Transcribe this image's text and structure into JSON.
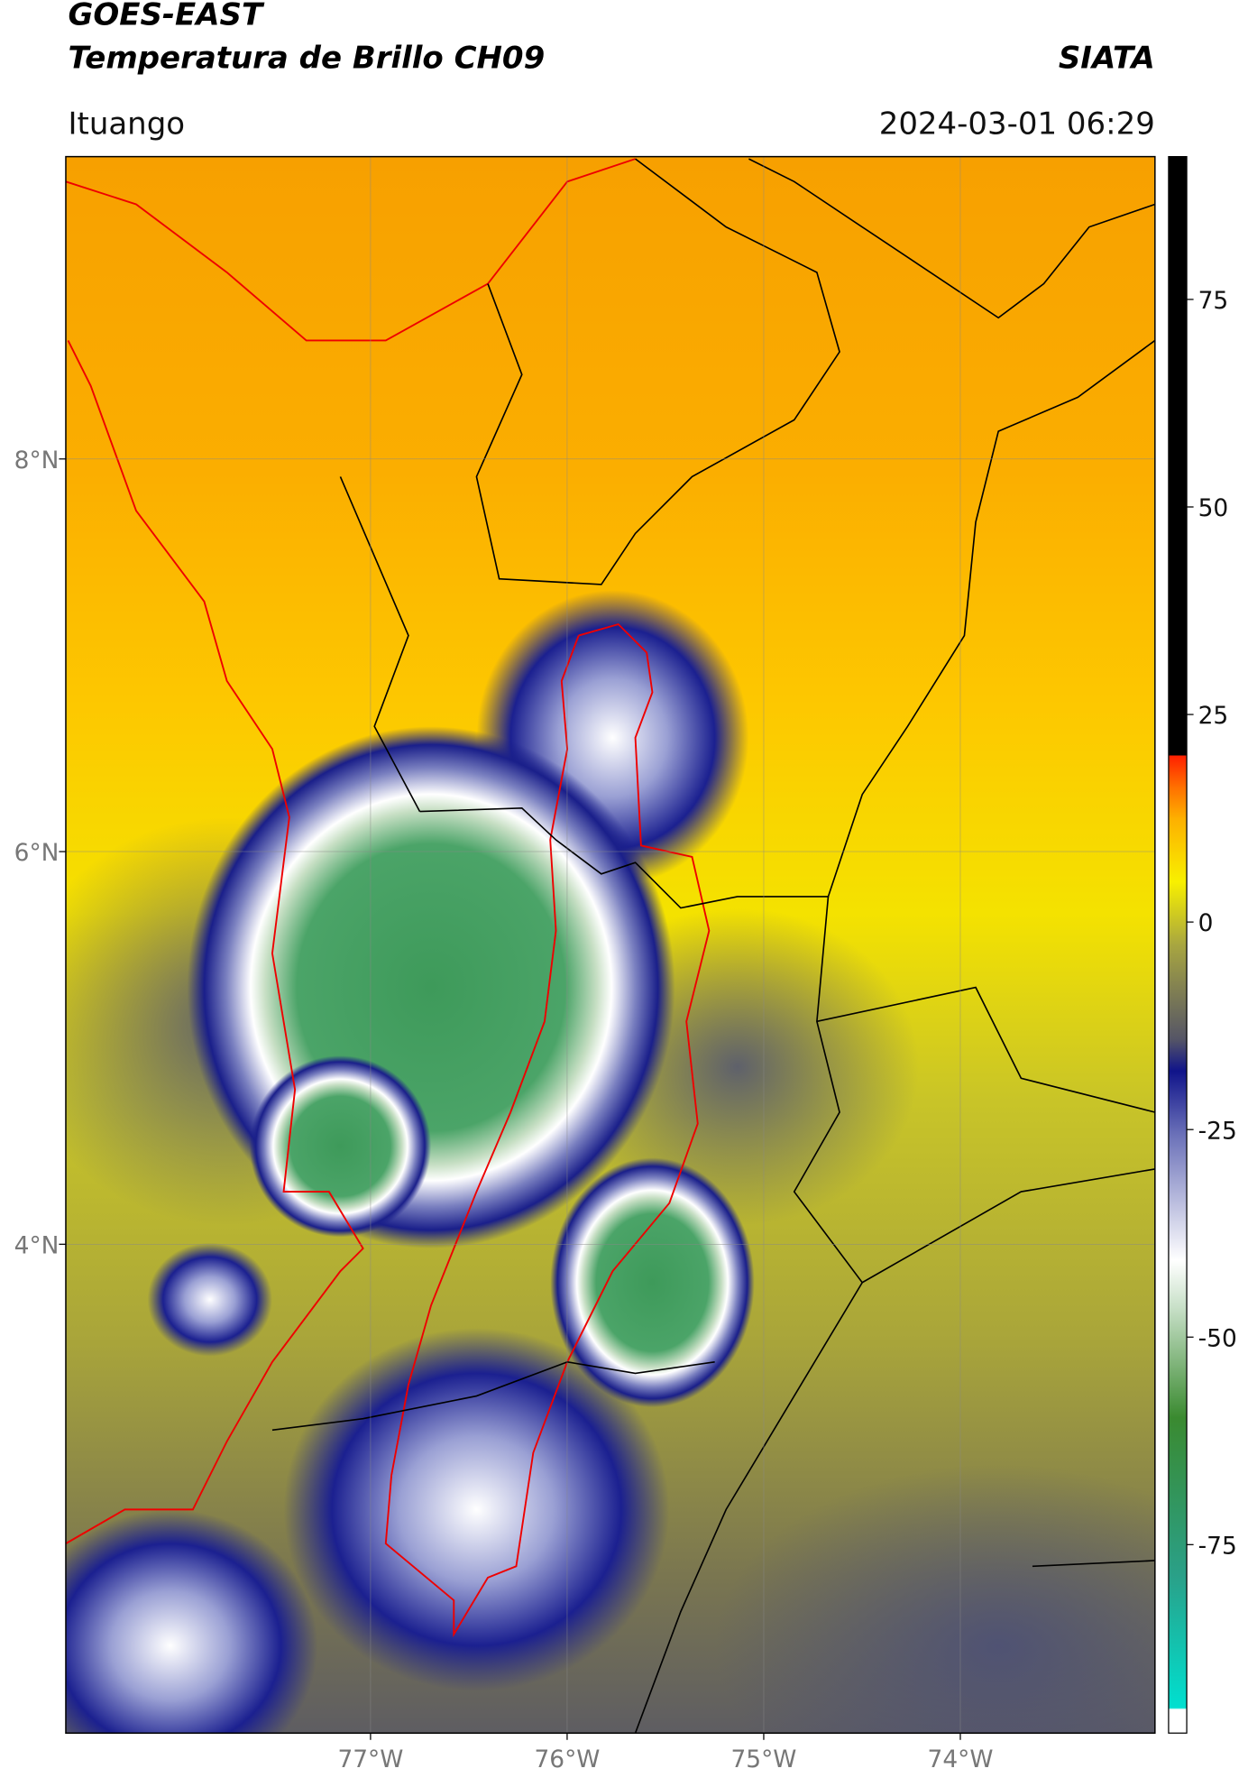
{
  "header": {
    "title": "GOES-EAST",
    "subtitle": "Temperatura de Brillo CH09",
    "source": "SIATA",
    "location": "Ituango",
    "datetime": "2024-03-01 06:29"
  },
  "map": {
    "xlim": [
      -78.55,
      -73.01
    ],
    "ylim": [
      1.51,
      9.54
    ],
    "xticks": [
      {
        "value": -77,
        "label": "77°W"
      },
      {
        "value": -76,
        "label": "76°W"
      },
      {
        "value": -75,
        "label": "75°W"
      },
      {
        "value": -74,
        "label": "74°W"
      }
    ],
    "yticks": [
      {
        "value": 8,
        "label": "8°N"
      },
      {
        "value": 6,
        "label": "6°N"
      },
      {
        "value": 4,
        "label": "4°N"
      }
    ],
    "grid": true
  },
  "colorbar": {
    "lim": [
      -97.7,
      92.2
    ],
    "ticks": [
      75,
      50,
      25,
      0,
      -25,
      -50,
      -75
    ]
  }
}
